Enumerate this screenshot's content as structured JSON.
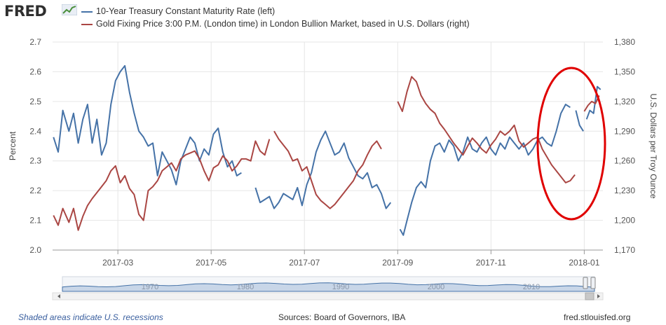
{
  "header": {
    "logo_text": "FRED",
    "logo_icon": "sparkline-icon"
  },
  "colors": {
    "series_left": "#4572a7",
    "series_right": "#aa4643",
    "grid": "#e6e6e6",
    "annotation": "#e00000",
    "navigator_fill": "#c8d6e8",
    "navigator_line": "#4572a7"
  },
  "chart_data": {
    "type": "line",
    "title": "",
    "xlabel": "",
    "x_tick_labels": [
      "2017-03",
      "2017-05",
      "2017-07",
      "2017-09",
      "2017-11",
      "2018-01"
    ],
    "x_tick_positions_months": [
      2,
      4,
      6,
      8,
      10,
      12
    ],
    "x_range_months": [
      0.6,
      12.4
    ],
    "y_left": {
      "label": "Percent",
      "range": [
        2.0,
        2.7
      ],
      "ticks": [
        "2.0",
        "2.1",
        "2.2",
        "2.3",
        "2.4",
        "2.5",
        "2.6",
        "2.7"
      ]
    },
    "y_right": {
      "label": "U.S. Dollars per Troy Ounce",
      "range": [
        1170,
        1380
      ],
      "ticks": [
        "1,170",
        "1,200",
        "1,230",
        "1,260",
        "1,290",
        "1,320",
        "1,350",
        "1,380"
      ]
    },
    "series": [
      {
        "name": "10-Year Treasury Constant Maturity Rate (left)",
        "axis": "left",
        "segments": [
          {
            "x": [
              0.62,
              0.72,
              0.82,
              0.95,
              1.05,
              1.15,
              1.25,
              1.35,
              1.45,
              1.55,
              1.65,
              1.75,
              1.85,
              1.95,
              2.05,
              2.15,
              2.25,
              2.35,
              2.45,
              2.55,
              2.65,
              2.75,
              2.85,
              2.95,
              3.05,
              3.15,
              3.25,
              3.35,
              3.45,
              3.55,
              3.65,
              3.75,
              3.85,
              3.95,
              4.05,
              4.15,
              4.25,
              4.35,
              4.45,
              4.55,
              4.65
            ],
            "y": [
              2.38,
              2.33,
              2.47,
              2.4,
              2.46,
              2.36,
              2.44,
              2.49,
              2.36,
              2.44,
              2.32,
              2.36,
              2.49,
              2.57,
              2.6,
              2.62,
              2.53,
              2.46,
              2.4,
              2.38,
              2.35,
              2.36,
              2.25,
              2.33,
              2.3,
              2.27,
              2.22,
              2.3,
              2.34,
              2.38,
              2.36,
              2.3,
              2.34,
              2.32,
              2.39,
              2.41,
              2.33,
              2.28,
              2.3,
              2.25,
              2.26
            ]
          },
          {
            "x": [
              4.95,
              5.05,
              5.15,
              5.25,
              5.35,
              5.45,
              5.55,
              5.65,
              5.75,
              5.85,
              5.95,
              6.05,
              6.15,
              6.25,
              6.35,
              6.45,
              6.55,
              6.65,
              6.75,
              6.85,
              6.95,
              7.05,
              7.15,
              7.25,
              7.35,
              7.45,
              7.55,
              7.65,
              7.75,
              7.85
            ],
            "y": [
              2.21,
              2.16,
              2.17,
              2.18,
              2.14,
              2.16,
              2.19,
              2.18,
              2.17,
              2.21,
              2.15,
              2.22,
              2.26,
              2.33,
              2.37,
              2.4,
              2.36,
              2.32,
              2.33,
              2.36,
              2.31,
              2.28,
              2.25,
              2.24,
              2.26,
              2.21,
              2.22,
              2.19,
              2.14,
              2.16
            ]
          },
          {
            "x": [
              8.05,
              8.12,
              8.2,
              8.3,
              8.4,
              8.5,
              8.6,
              8.7,
              8.8,
              8.9,
              9.0,
              9.1,
              9.2,
              9.3,
              9.4,
              9.5,
              9.6,
              9.7,
              9.8,
              9.9,
              10.0,
              10.1,
              10.2,
              10.3,
              10.4,
              10.5,
              10.6,
              10.7,
              10.8,
              10.9,
              11.0,
              11.1,
              11.2,
              11.3,
              11.4,
              11.5,
              11.6,
              11.7
            ],
            "y": [
              2.07,
              2.05,
              2.1,
              2.16,
              2.21,
              2.23,
              2.21,
              2.3,
              2.35,
              2.36,
              2.33,
              2.37,
              2.35,
              2.3,
              2.33,
              2.38,
              2.34,
              2.33,
              2.36,
              2.38,
              2.34,
              2.32,
              2.36,
              2.34,
              2.38,
              2.36,
              2.34,
              2.36,
              2.32,
              2.34,
              2.37,
              2.38,
              2.36,
              2.35,
              2.4,
              2.46,
              2.49,
              2.48
            ]
          },
          {
            "x": [
              11.82,
              11.9,
              11.98
            ],
            "y": [
              2.47,
              2.42,
              2.4
            ]
          },
          {
            "x": [
              12.05,
              12.12,
              12.2,
              12.28,
              12.35
            ],
            "y": [
              2.44,
              2.47,
              2.46,
              2.55,
              2.54
            ]
          }
        ]
      },
      {
        "name": "Gold Fixing Price 3:00 P.M. (London time) in London Bullion Market, based in U.S. Dollars (right)",
        "axis": "right",
        "segments": [
          {
            "x": [
              0.62,
              0.72,
              0.82,
              0.95,
              1.05,
              1.15,
              1.25,
              1.35,
              1.45,
              1.55,
              1.65,
              1.75,
              1.85,
              1.95,
              2.05,
              2.15,
              2.25,
              2.35,
              2.45,
              2.55,
              2.65,
              2.75,
              2.85,
              2.95,
              3.05,
              3.15,
              3.25,
              3.35,
              3.45,
              3.55,
              3.65,
              3.75,
              3.85,
              3.95,
              4.05,
              4.15,
              4.25,
              4.35,
              4.45,
              4.55,
              4.65,
              4.75,
              4.85,
              4.95,
              5.05,
              5.15,
              5.25
            ],
            "y": [
              1205,
              1195,
              1212,
              1198,
              1212,
              1190,
              1204,
              1215,
              1222,
              1228,
              1234,
              1240,
              1250,
              1255,
              1238,
              1245,
              1232,
              1226,
              1206,
              1200,
              1230,
              1234,
              1240,
              1250,
              1254,
              1258,
              1250,
              1262,
              1266,
              1268,
              1270,
              1262,
              1250,
              1240,
              1253,
              1256,
              1265,
              1260,
              1250,
              1255,
              1262,
              1262,
              1260,
              1280,
              1270,
              1266,
              1282
            ]
          },
          {
            "x": [
              5.35,
              5.45,
              5.55,
              5.65,
              5.75,
              5.85,
              5.95,
              6.05,
              6.15,
              6.25,
              6.35,
              6.45,
              6.55,
              6.65,
              6.75,
              6.85,
              6.95,
              7.05,
              7.15,
              7.25,
              7.35,
              7.45,
              7.55,
              7.65
            ],
            "y": [
              1290,
              1282,
              1276,
              1270,
              1260,
              1262,
              1250,
              1254,
              1240,
              1226,
              1220,
              1216,
              1212,
              1216,
              1222,
              1228,
              1234,
              1240,
              1250,
              1256,
              1266,
              1275,
              1280,
              1272
            ]
          },
          {
            "x": [
              8.0,
              8.1,
              8.2,
              8.3,
              8.4,
              8.5,
              8.6,
              8.7,
              8.8,
              8.9,
              9.0,
              9.1,
              9.2,
              9.3,
              9.4,
              9.5,
              9.6,
              9.7,
              9.8,
              9.9,
              10.0,
              10.1,
              10.2,
              10.3,
              10.4,
              10.5,
              10.6,
              10.7,
              10.8,
              10.9,
              11.0,
              11.1,
              11.2,
              11.3,
              11.4,
              11.5,
              11.6,
              11.7,
              11.8
            ],
            "y": [
              1320,
              1310,
              1330,
              1345,
              1340,
              1326,
              1318,
              1312,
              1308,
              1298,
              1292,
              1285,
              1278,
              1272,
              1266,
              1275,
              1283,
              1278,
              1272,
              1268,
              1276,
              1282,
              1290,
              1286,
              1290,
              1296,
              1280,
              1274,
              1278,
              1282,
              1284,
              1272,
              1264,
              1256,
              1250,
              1244,
              1238,
              1240,
              1246
            ]
          },
          {
            "x": [
              12.0,
              12.08,
              12.16,
              12.24,
              12.32
            ],
            "y": [
              1310,
              1316,
              1320,
              1318,
              1326
            ]
          }
        ]
      }
    ],
    "annotations": [
      {
        "type": "ellipse",
        "target": "late December 2017 - January 2018",
        "color": "#e00000"
      }
    ],
    "navigator": {
      "labels": [
        "1970",
        "1980",
        "1990",
        "2000",
        "2010"
      ]
    }
  },
  "footer": {
    "left": "Shaded areas indicate U.S. recessions",
    "middle": "Sources: Board of Governors, IBA",
    "right": "fred.stlouisfed.org"
  }
}
